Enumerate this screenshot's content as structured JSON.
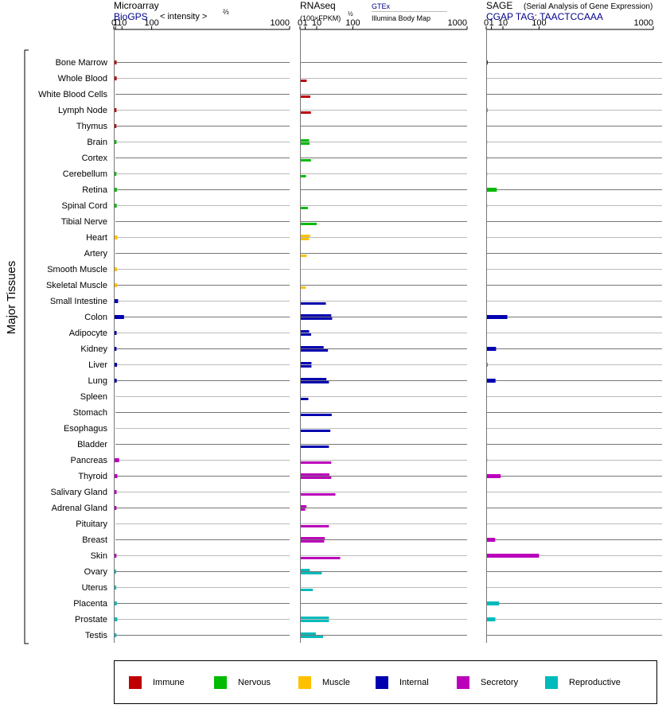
{
  "header": {
    "microarray": {
      "title": "Microarray",
      "source": "BioGPS",
      "unit": "< intensity >",
      "unit_power": "⅔"
    },
    "rnaseq": {
      "title": "RNAseq",
      "unit": "(100×FPKM)",
      "unit_power": "½",
      "source1": "GTEx",
      "source2": "Illumina Body Map"
    },
    "sage": {
      "title": "SAGE",
      "subtitle": "(Serial Analysis of Gene Expression)",
      "source": "CGAP TAG: TAACTCCAAA"
    }
  },
  "axis_title": "Major Tissues",
  "colors": {
    "Immune": "#c00000",
    "Nervous": "#00bb00",
    "Muscle": "#ffc000",
    "Internal": "#0000b0",
    "Secretory": "#bb00bb",
    "Reproductive": "#00bbbb",
    "blue_text": "#00008b"
  },
  "legend": [
    {
      "label": "Immune",
      "category": "Immune"
    },
    {
      "label": "Nervous",
      "category": "Nervous"
    },
    {
      "label": "Muscle",
      "category": "Muscle"
    },
    {
      "label": "Internal",
      "category": "Internal"
    },
    {
      "label": "Secretory",
      "category": "Secretory"
    },
    {
      "label": "Reproductive",
      "category": "Reproductive"
    }
  ],
  "chart_data": {
    "type": "bar",
    "orientation": "horizontal",
    "scale": "power",
    "panels": [
      {
        "name": "Microarray",
        "exponent": 0.6667,
        "ticks": [
          0,
          1,
          10,
          100,
          1000
        ],
        "xlim": [
          0,
          1000
        ]
      },
      {
        "name": "RNAseq",
        "exponent": 0.5,
        "ticks": [
          0,
          1,
          10,
          100,
          1000
        ],
        "xlim": [
          0,
          1000
        ]
      },
      {
        "name": "SAGE",
        "exponent": 0.5,
        "ticks": [
          0,
          1,
          10,
          100,
          1000
        ],
        "xlim": [
          0,
          1000
        ]
      }
    ],
    "tissues": [
      {
        "name": "Bone Marrow",
        "category": "Immune",
        "microarray": 2.0,
        "rnaseq": [],
        "sage": 0.1
      },
      {
        "name": "Whole Blood",
        "category": "Immune",
        "microarray": 2.1,
        "rnaseq": [
          1.6
        ],
        "sage": null
      },
      {
        "name": "White Blood Cells",
        "category": "Immune",
        "microarray": null,
        "rnaseq": [
          3.8
        ],
        "sage": null
      },
      {
        "name": "Lymph Node",
        "category": "Immune",
        "microarray": 1.9,
        "rnaseq": [
          4.3
        ],
        "sage": 0.05
      },
      {
        "name": "Thymus",
        "category": "Immune",
        "microarray": 1.8,
        "rnaseq": [],
        "sage": null
      },
      {
        "name": "Brain",
        "category": "Nervous",
        "microarray": 1.9,
        "rnaseq": [
          3.0,
          3.3
        ],
        "sage": 0.03
      },
      {
        "name": "Cortex",
        "category": "Nervous",
        "microarray": null,
        "rnaseq": [
          4.3
        ],
        "sage": 0.03
      },
      {
        "name": "Cerebellum",
        "category": "Nervous",
        "microarray": 1.8,
        "rnaseq": [
          1.3
        ],
        "sage": 0.03
      },
      {
        "name": "Retina",
        "category": "Nervous",
        "microarray": 2.3,
        "rnaseq": [],
        "sage": 4.0
      },
      {
        "name": "Spinal Cord",
        "category": "Nervous",
        "microarray": 2.1,
        "rnaseq": [
          2.2
        ],
        "sage": 0.03
      },
      {
        "name": "Tibial Nerve",
        "category": "Nervous",
        "microarray": null,
        "rnaseq": [
          10
        ],
        "sage": null
      },
      {
        "name": "Heart",
        "category": "Muscle",
        "microarray": 2.9,
        "rnaseq": [
          3.7,
          2.9
        ],
        "sage": 0.01
      },
      {
        "name": "Artery",
        "category": "Muscle",
        "microarray": null,
        "rnaseq": [
          1.6
        ],
        "sage": null
      },
      {
        "name": "Smooth Muscle",
        "category": "Muscle",
        "microarray": 2.3,
        "rnaseq": [],
        "sage": null
      },
      {
        "name": "Skeletal Muscle",
        "category": "Muscle",
        "microarray": 2.4,
        "rnaseq": [
          1.2
        ],
        "sage": 0.01
      },
      {
        "name": "Small Intestine",
        "category": "Internal",
        "microarray": 3.8,
        "rnaseq": [
          24
        ],
        "sage": null
      },
      {
        "name": "Colon",
        "category": "Internal",
        "microarray": 14,
        "rnaseq": [
          35,
          37
        ],
        "sage": 16
      },
      {
        "name": "Adipocyte",
        "category": "Internal",
        "microarray": 2.0,
        "rnaseq": [
          3.0,
          4.4
        ],
        "sage": null
      },
      {
        "name": "Kidney",
        "category": "Internal",
        "microarray": 1.9,
        "rnaseq": [
          20,
          28
        ],
        "sage": 3.5
      },
      {
        "name": "Liver",
        "category": "Internal",
        "microarray": 2.5,
        "rnaseq": [
          4.7,
          4.7
        ],
        "sage": 0.05
      },
      {
        "name": "Lung",
        "category": "Internal",
        "microarray": 2.1,
        "rnaseq": [
          25,
          30
        ],
        "sage": 3.1
      },
      {
        "name": "Spleen",
        "category": "Internal",
        "microarray": null,
        "rnaseq": [
          2.5
        ],
        "sage": null
      },
      {
        "name": "Stomach",
        "category": "Internal",
        "microarray": null,
        "rnaseq": [
          36
        ],
        "sage": null
      },
      {
        "name": "Esophagus",
        "category": "Internal",
        "microarray": null,
        "rnaseq": [
          33
        ],
        "sage": null
      },
      {
        "name": "Bladder",
        "category": "Internal",
        "microarray": null,
        "rnaseq": [
          30
        ],
        "sage": null
      },
      {
        "name": "Pancreas",
        "category": "Secretory",
        "microarray": 5.3,
        "rnaseq": [
          35
        ],
        "sage": 0.03
      },
      {
        "name": "Thyroid",
        "category": "Secretory",
        "microarray": 2.9,
        "rnaseq": [
          31,
          35
        ],
        "sage": 7.5
      },
      {
        "name": "Salivary Gland",
        "category": "Secretory",
        "microarray": 2.0,
        "rnaseq": [
          45
        ],
        "sage": null
      },
      {
        "name": "Adrenal Gland",
        "category": "Secretory",
        "microarray": 1.9,
        "rnaseq": [
          1.5,
          1.0
        ],
        "sage": null
      },
      {
        "name": "Pituitary",
        "category": "Secretory",
        "microarray": null,
        "rnaseq": [
          30
        ],
        "sage": null
      },
      {
        "name": "Breast",
        "category": "Secretory",
        "microarray": null,
        "rnaseq": [
          22,
          21
        ],
        "sage": 2.9
      },
      {
        "name": "Skin",
        "category": "Secretory",
        "microarray": 1.9,
        "rnaseq": [
          58
        ],
        "sage": 100
      },
      {
        "name": "Ovary",
        "category": "Reproductive",
        "microarray": 1.6,
        "rnaseq": [
          3.5,
          17
        ],
        "sage": null
      },
      {
        "name": "Uterus",
        "category": "Reproductive",
        "microarray": 1.7,
        "rnaseq": [
          6
        ],
        "sage": null
      },
      {
        "name": "Placenta",
        "category": "Reproductive",
        "microarray": 2.2,
        "rnaseq": [],
        "sage": 6.0
      },
      {
        "name": "Prostate",
        "category": "Reproductive",
        "microarray": 2.8,
        "rnaseq": [
          30,
          30
        ],
        "sage": 3.0
      },
      {
        "name": "Testis",
        "category": "Reproductive",
        "microarray": 1.8,
        "rnaseq": [
          9,
          19
        ],
        "sage": null
      }
    ]
  }
}
